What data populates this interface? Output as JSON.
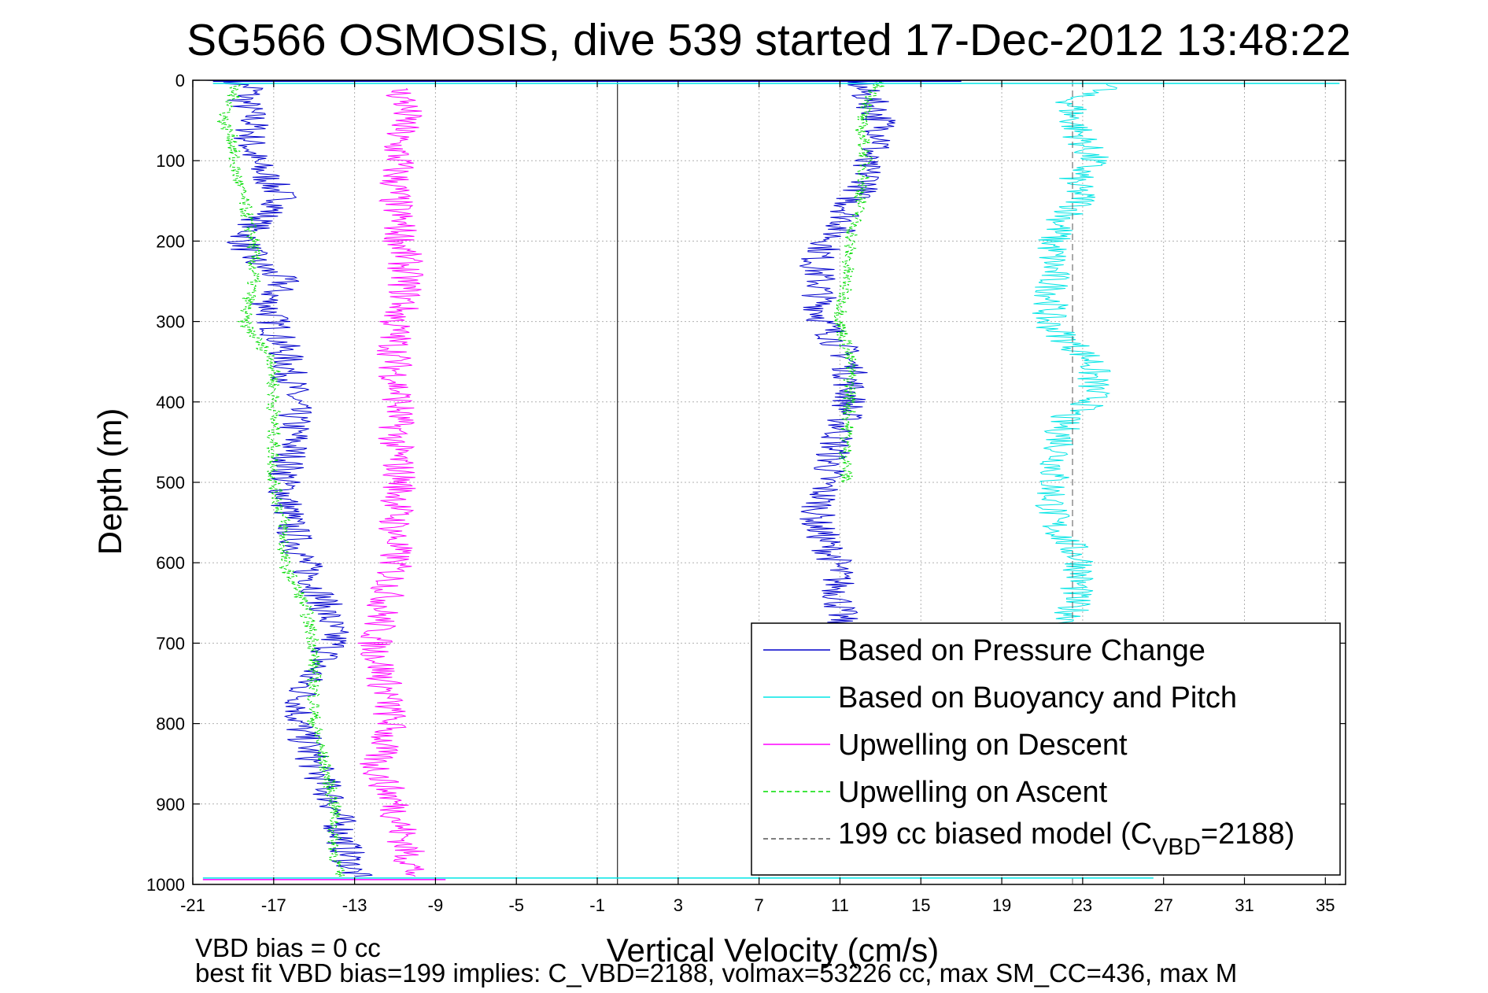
{
  "chart_data": {
    "type": "line",
    "title": "SG566 OSMOSIS, dive 539 started 17-Dec-2012 13:48:22",
    "xlabel": "Vertical Velocity (cm/s)",
    "ylabel": "Depth (m)",
    "xlim": [
      -21,
      36
    ],
    "ylim": [
      0,
      1000
    ],
    "y_reversed": true,
    "grid": true,
    "legend_position": "bottom-right",
    "xticks": [
      "-21",
      "-17",
      "-13",
      "-9",
      "-5",
      "-1",
      "3",
      "7",
      "11",
      "15",
      "19",
      "23",
      "27",
      "31",
      "35"
    ],
    "yticks": [
      "0",
      "100",
      "200",
      "300",
      "400",
      "500",
      "600",
      "700",
      "800",
      "900",
      "1000"
    ],
    "reference_line_x": 0,
    "series": [
      {
        "name": "Based on Pressure Change",
        "color": "#0000cc",
        "style": "solid",
        "profiles": [
          {
            "depth": [
              0,
              10,
              25,
              50,
              75,
              100,
              125,
              150,
              175,
              200,
              225,
              250,
              275,
              300,
              350,
              400,
              450,
              500,
              550,
              600,
              650,
              700,
              750,
              800,
              850,
              900,
              950,
              990
            ],
            "velocity": [
              -19.5,
              -18.0,
              -18.5,
              -18.0,
              -18.2,
              -18.0,
              -17.2,
              -16.5,
              -17.8,
              -18.5,
              -18.0,
              -16.5,
              -17.3,
              -17.0,
              -16.3,
              -16.0,
              -16.0,
              -16.5,
              -16.2,
              -15.5,
              -14.5,
              -14.0,
              -15.5,
              -15.8,
              -15.0,
              -14.0,
              -13.5,
              -13.0
            ]
          },
          {
            "depth": [
              0,
              10,
              25,
              50,
              75,
              100,
              125,
              150,
              175,
              200,
              225,
              250,
              275,
              300,
              350,
              400,
              450,
              500,
              550,
              600,
              650,
              680
            ],
            "velocity": [
              12.0,
              12.0,
              12.5,
              13.0,
              13.2,
              12.0,
              12.5,
              11.5,
              11.3,
              10.5,
              9.8,
              10.0,
              10.0,
              10.2,
              11.5,
              11.5,
              10.8,
              10.3,
              9.8,
              10.8,
              11.0,
              11.0
            ]
          }
        ]
      },
      {
        "name": "Based on Buoyancy and Pitch",
        "color": "#00e5e5",
        "style": "solid",
        "profiles": [
          {
            "depth": [
              5,
              20,
              50,
              75,
              100,
              125,
              150,
              175,
              200,
              225,
              250,
              275,
              300,
              350,
              400,
              420,
              450,
              500,
              550,
              600,
              650,
              680
            ],
            "velocity": [
              25.0,
              22.5,
              22.5,
              23.0,
              23.5,
              22.5,
              23.0,
              22.0,
              21.5,
              21.5,
              21.5,
              21.5,
              21.2,
              23.5,
              23.5,
              22.0,
              22.0,
              21.5,
              21.5,
              23.0,
              22.5,
              22.5
            ]
          }
        ]
      },
      {
        "name": "Upwelling on Descent",
        "color": "#ff00ff",
        "style": "solid",
        "profiles": [
          {
            "depth": [
              10,
              25,
              50,
              75,
              100,
              125,
              150,
              175,
              200,
              225,
              250,
              275,
              300,
              350,
              400,
              450,
              500,
              550,
              600,
              650,
              700,
              750,
              800,
              850,
              900,
              950,
              990
            ],
            "velocity": [
              -11.0,
              -10.5,
              -10.5,
              -11.0,
              -10.8,
              -11.0,
              -11.0,
              -10.8,
              -10.7,
              -10.5,
              -10.5,
              -10.5,
              -11.0,
              -11.0,
              -10.8,
              -11.0,
              -10.7,
              -11.0,
              -11.0,
              -11.5,
              -12.0,
              -11.5,
              -11.2,
              -12.0,
              -11.0,
              -10.5,
              -10.0
            ]
          }
        ]
      },
      {
        "name": "Upwelling on Ascent",
        "color": "#00dd00",
        "style": "dashed",
        "profiles": [
          {
            "depth": [
              5,
              25,
              50,
              75,
              100,
              150,
              200,
              250,
              300,
              350,
              400,
              450,
              500,
              550,
              600,
              650,
              700,
              750,
              800,
              850,
              900,
              950,
              990
            ],
            "velocity": [
              -19.0,
              -19.0,
              -19.5,
              -19.0,
              -19.0,
              -18.5,
              -18.0,
              -18.0,
              -18.5,
              -17.0,
              -17.0,
              -17.0,
              -17.0,
              -16.5,
              -16.5,
              -15.5,
              -15.0,
              -15.0,
              -15.0,
              -14.5,
              -14.0,
              -14.0,
              -13.8
            ]
          },
          {
            "depth": [
              0,
              25,
              50,
              100,
              150,
              200,
              250,
              300,
              350,
              400,
              450,
              500
            ],
            "velocity": [
              13.0,
              12.5,
              12.0,
              12.3,
              12.0,
              11.5,
              11.3,
              11.0,
              11.5,
              11.5,
              11.3,
              11.3
            ]
          }
        ]
      },
      {
        "name": "199 cc biased model (C",
        "subscript": "VBD",
        "suffix": "=2188)",
        "color": "#555555",
        "style": "dashed",
        "profiles": [
          {
            "depth": [
              0,
              1000
            ],
            "velocity": [
              22.5,
              22.5
            ]
          }
        ]
      }
    ],
    "surface_spike": {
      "depth": 0,
      "velocity_min": -20.0,
      "velocity_max": 17.0
    },
    "bottom_spike": {
      "depth": 992,
      "velocity_min": -20.5,
      "velocity_max": 26.5
    }
  },
  "footer": {
    "line1": "VBD bias = 0 cc",
    "line2": "best fit VBD bias=199 implies: C_VBD=2188, volmax=53226 cc, max SM_CC=436, max M"
  }
}
